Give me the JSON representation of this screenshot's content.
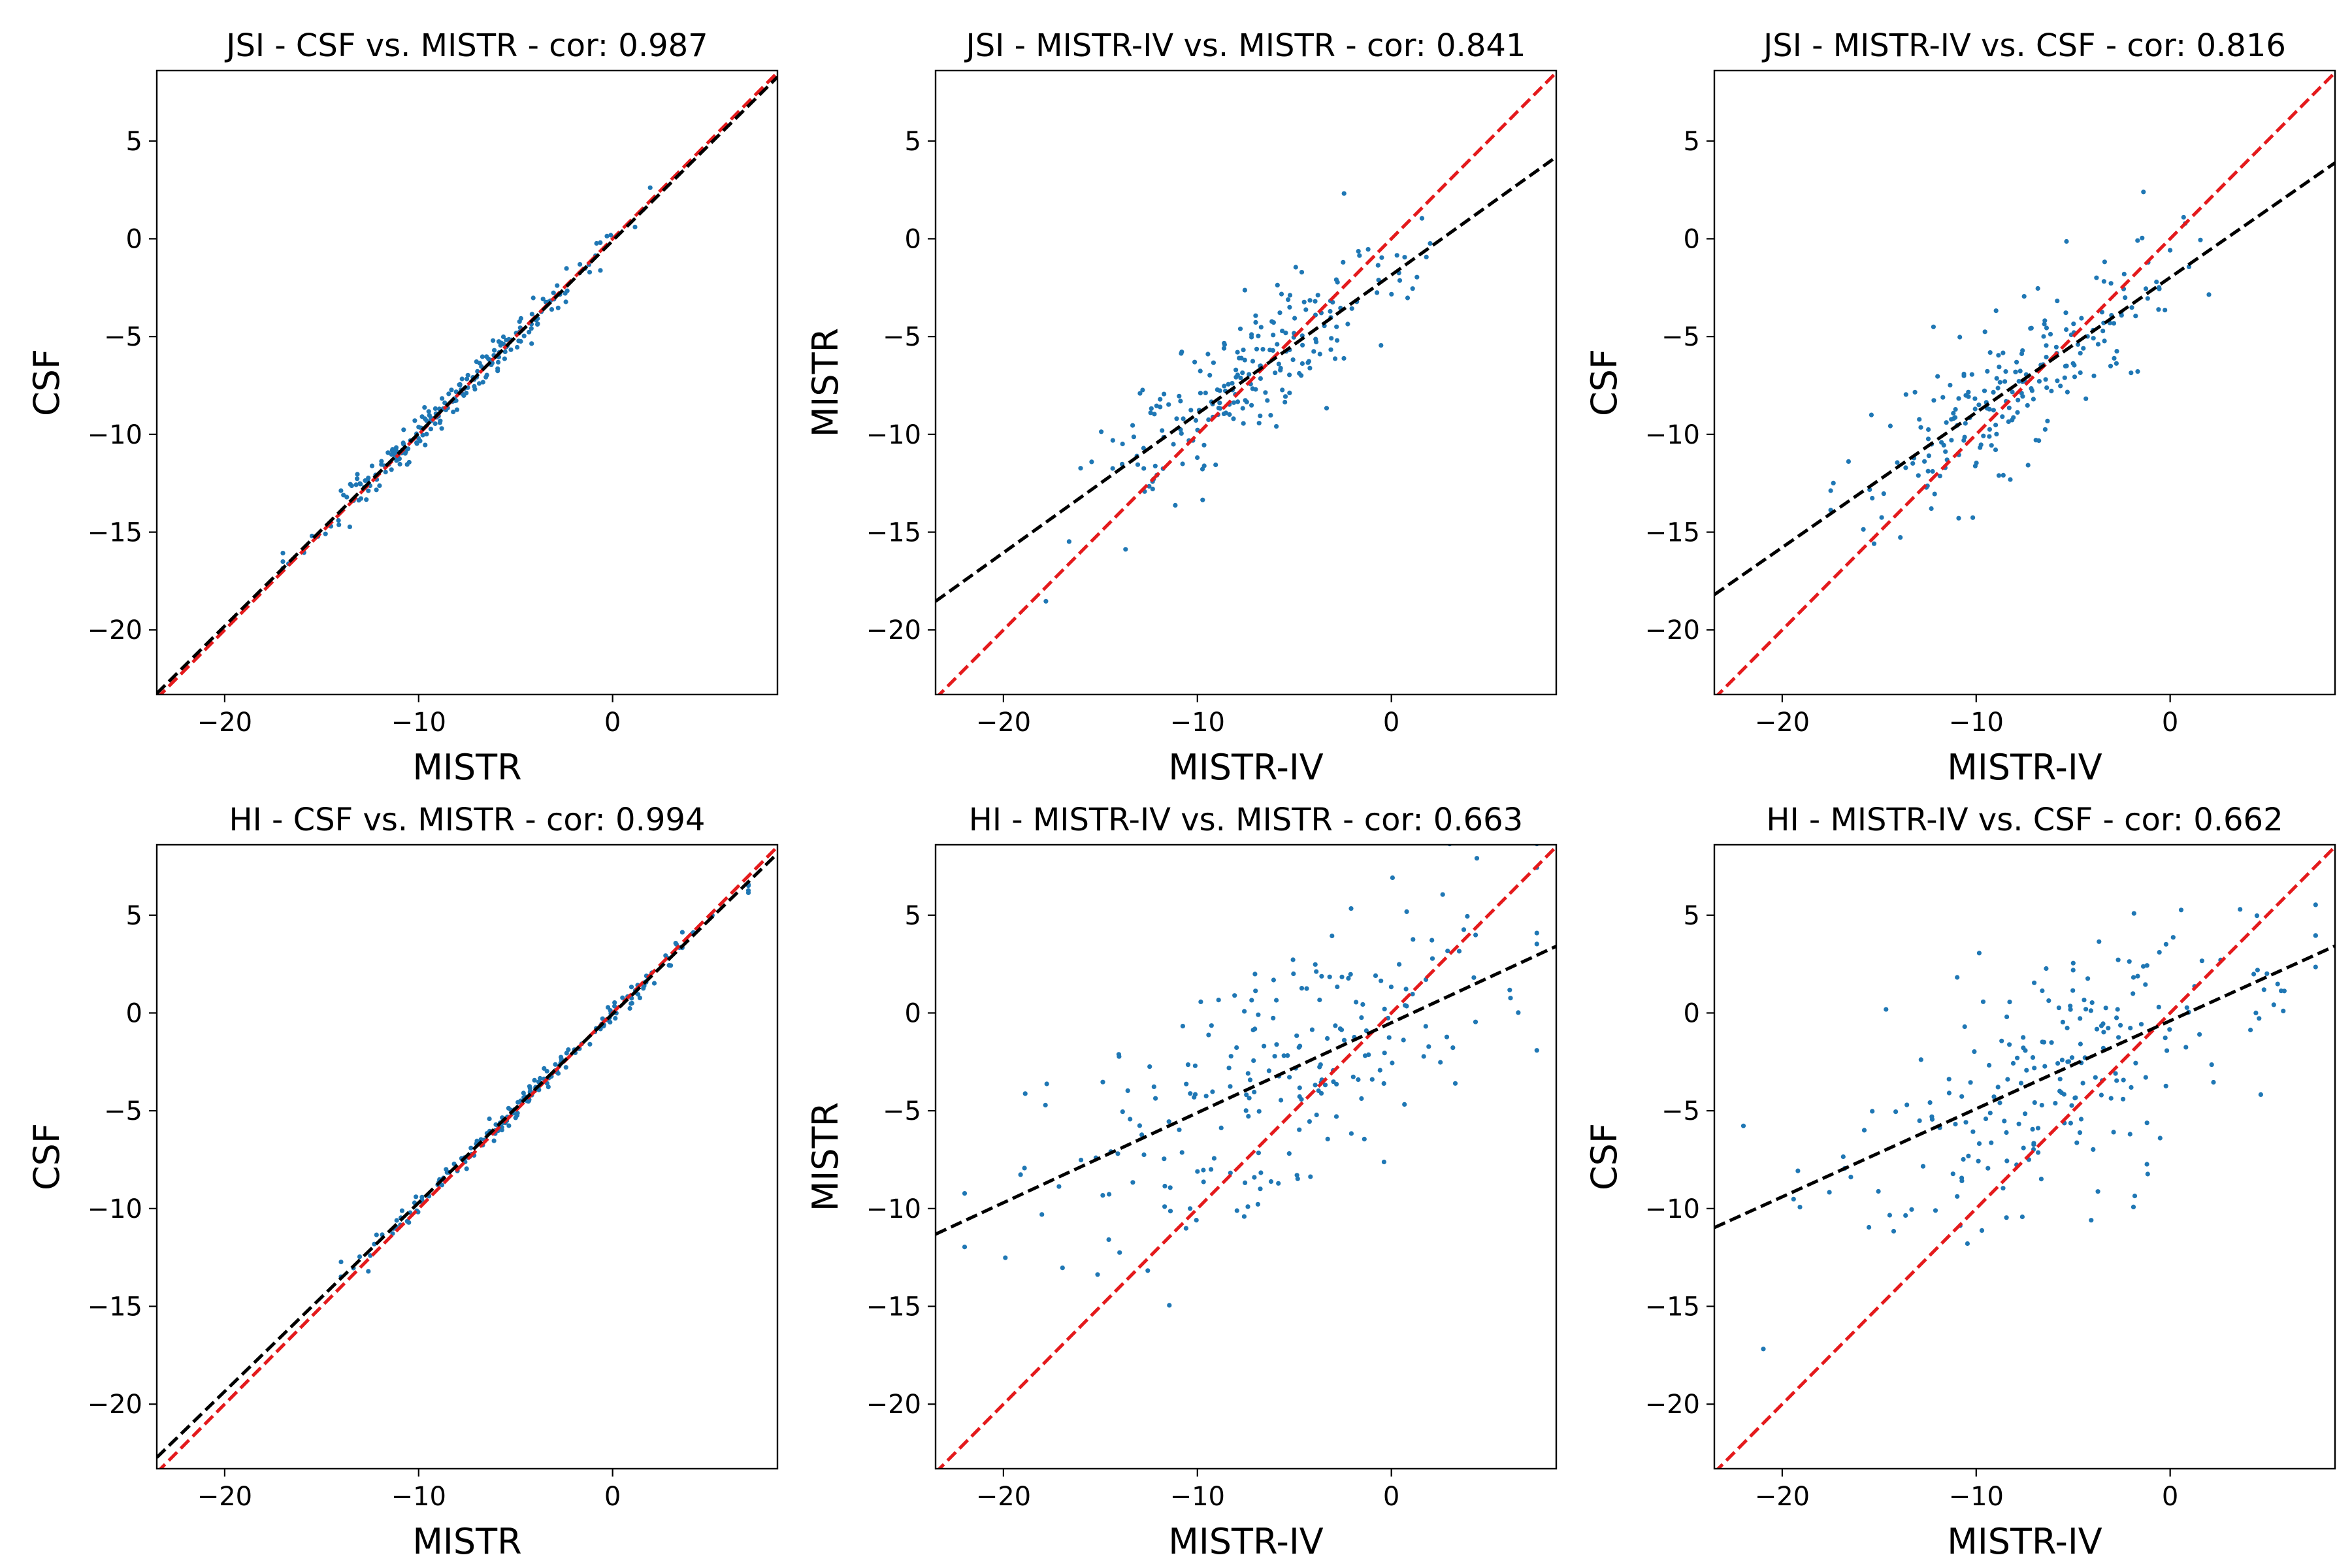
{
  "colors": {
    "points": "#1f77b4",
    "identity_line": "#e41a1c",
    "fit_line": "#000000",
    "axes": "#000000"
  },
  "chart_data": [
    {
      "type": "scatter",
      "title": "JSI - CSF vs. MISTR - cor: 0.987",
      "xlabel": "MISTR",
      "ylabel": "CSF",
      "xlim": [
        -23.5,
        8.5
      ],
      "ylim": [
        -23.3,
        8.6
      ],
      "xticks": [
        -20,
        -10,
        0
      ],
      "yticks": [
        -20,
        -15,
        -10,
        -5,
        0,
        5
      ],
      "identity_line": {
        "from": [
          -23.5,
          -23.5
        ],
        "to": [
          8.5,
          8.5
        ]
      },
      "fit_line": {
        "slope": 0.985,
        "intercept": -0.1
      },
      "cluster": {
        "n": 220,
        "x_center": -8.5,
        "x_sd": 3.6,
        "x_min": -17,
        "x_max": 4.5,
        "slope": 0.985,
        "intercept": -0.1,
        "noise": 0.45,
        "seed": 11
      }
    },
    {
      "type": "scatter",
      "title": "JSI - MISTR-IV vs. MISTR - cor: 0.841",
      "xlabel": "MISTR-IV",
      "ylabel": "MISTR",
      "xlim": [
        -23.5,
        8.5
      ],
      "ylim": [
        -23.3,
        8.6
      ],
      "xticks": [
        -20,
        -10,
        0
      ],
      "yticks": [
        -20,
        -15,
        -10,
        -5,
        0,
        5
      ],
      "identity_line": {
        "from": [
          -23.5,
          -23.5
        ],
        "to": [
          8.5,
          8.5
        ]
      },
      "fit_line": {
        "slope": 0.71,
        "intercept": -1.85
      },
      "cluster": {
        "n": 220,
        "x_center": -7.5,
        "x_sd": 4.0,
        "x_min": -18,
        "x_max": 2,
        "slope": 0.71,
        "intercept": -1.85,
        "noise": 1.8,
        "seed": 23
      }
    },
    {
      "type": "scatter",
      "title": "JSI - MISTR-IV vs. CSF - cor: 0.816",
      "xlabel": "MISTR-IV",
      "ylabel": "CSF",
      "xlim": [
        -23.5,
        8.5
      ],
      "ylim": [
        -23.3,
        8.6
      ],
      "xticks": [
        -20,
        -10,
        0
      ],
      "yticks": [
        -20,
        -15,
        -10,
        -5,
        0,
        5
      ],
      "identity_line": {
        "from": [
          -23.5,
          -23.5
        ],
        "to": [
          8.5,
          8.5
        ]
      },
      "fit_line": {
        "slope": 0.69,
        "intercept": -1.98
      },
      "cluster": {
        "n": 220,
        "x_center": -7.5,
        "x_sd": 4.0,
        "x_min": -17.5,
        "x_max": 2,
        "slope": 0.69,
        "intercept": -1.98,
        "noise": 1.9,
        "seed": 37
      }
    },
    {
      "type": "scatter",
      "title": "HI - CSF vs. MISTR - cor: 0.994",
      "xlabel": "MISTR",
      "ylabel": "CSF",
      "xlim": [
        -23.5,
        8.5
      ],
      "ylim": [
        -23.3,
        8.6
      ],
      "xticks": [
        -20,
        -10,
        0
      ],
      "yticks": [
        -20,
        -15,
        -10,
        -5,
        0,
        5
      ],
      "identity_line": {
        "from": [
          -23.5,
          -23.5
        ],
        "to": [
          8.5,
          8.5
        ]
      },
      "fit_line": {
        "slope": 0.965,
        "intercept": -0.05
      },
      "cluster": {
        "n": 200,
        "x_center": -3.5,
        "x_sd": 4.5,
        "x_min": -14,
        "x_max": 7,
        "slope": 0.965,
        "intercept": -0.05,
        "noise": 0.3,
        "seed": 41
      }
    },
    {
      "type": "scatter",
      "title": "HI - MISTR-IV vs. MISTR - cor: 0.663",
      "xlabel": "MISTR-IV",
      "ylabel": "MISTR",
      "xlim": [
        -23.5,
        8.5
      ],
      "ylim": [
        -23.3,
        8.6
      ],
      "xticks": [
        -20,
        -10,
        0
      ],
      "yticks": [
        -20,
        -15,
        -10,
        -5,
        0,
        5
      ],
      "identity_line": {
        "from": [
          -23.5,
          -23.5
        ],
        "to": [
          8.5,
          8.5
        ]
      },
      "fit_line": {
        "slope": 0.46,
        "intercept": -0.5
      },
      "cluster": {
        "n": 220,
        "x_center": -6,
        "x_sd": 6.0,
        "x_min": -22,
        "x_max": 7.5,
        "slope": 0.46,
        "intercept": -0.5,
        "noise": 3.2,
        "seed": 53
      }
    },
    {
      "type": "scatter",
      "title": "HI - MISTR-IV vs. CSF - cor: 0.662",
      "xlabel": "MISTR-IV",
      "ylabel": "CSF",
      "xlim": [
        -23.5,
        8.5
      ],
      "ylim": [
        -23.3,
        8.6
      ],
      "xticks": [
        -20,
        -10,
        0
      ],
      "yticks": [
        -20,
        -15,
        -10,
        -5,
        0,
        5
      ],
      "identity_line": {
        "from": [
          -23.5,
          -23.5
        ],
        "to": [
          8.5,
          8.5
        ]
      },
      "fit_line": {
        "slope": 0.45,
        "intercept": -0.4
      },
      "cluster": {
        "n": 220,
        "x_center": -6,
        "x_sd": 6.0,
        "x_min": -22,
        "x_max": 7.5,
        "slope": 0.45,
        "intercept": -0.4,
        "noise": 3.1,
        "seed": 67
      }
    }
  ]
}
